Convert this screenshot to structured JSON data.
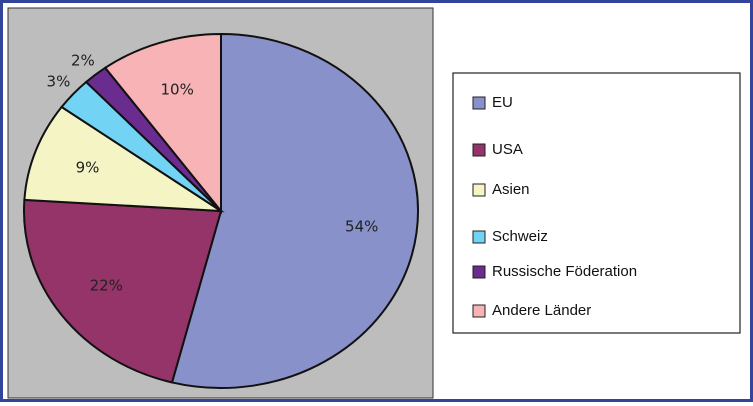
{
  "chart_data": {
    "type": "pie",
    "categories": [
      "EU",
      "USA",
      "Asien",
      "Schweiz",
      "Russische Föderation",
      "Andere Länder"
    ],
    "values": [
      54,
      22,
      9,
      3,
      2,
      10
    ],
    "value_labels": [
      "54%",
      "22%",
      "9%",
      "3%",
      "2%",
      "10%"
    ],
    "colors": [
      "#8891c9",
      "#943468",
      "#f4f4c4",
      "#72d3f5",
      "#6b2c8f",
      "#f7b3b5"
    ],
    "legend": "right"
  }
}
